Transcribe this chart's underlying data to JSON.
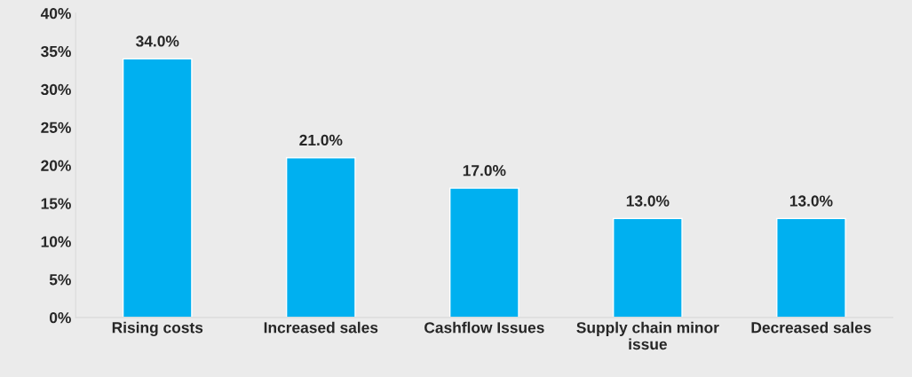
{
  "chart_data": {
    "type": "bar",
    "categories": [
      "Rising costs",
      "Increased sales",
      "Cashflow Issues",
      "Supply chain minor\nissue",
      "Decreased sales"
    ],
    "values": [
      34.0,
      21.0,
      17.0,
      13.0,
      13.0
    ],
    "value_labels": [
      "34.0%",
      "21.0%",
      "17.0%",
      "13.0%",
      "13.0%"
    ],
    "color": "#00b0f0",
    "ylim": [
      0,
      40
    ],
    "yticks": [
      {
        "value": 0,
        "label": "0%"
      },
      {
        "value": 5,
        "label": "5%"
      },
      {
        "value": 10,
        "label": "10%"
      },
      {
        "value": 15,
        "label": "15%"
      },
      {
        "value": 20,
        "label": "20%"
      },
      {
        "value": 25,
        "label": "25%"
      },
      {
        "value": 30,
        "label": "30%"
      },
      {
        "value": 35,
        "label": "35%"
      },
      {
        "value": 40,
        "label": "40%"
      }
    ],
    "grid": false,
    "legend": false
  }
}
